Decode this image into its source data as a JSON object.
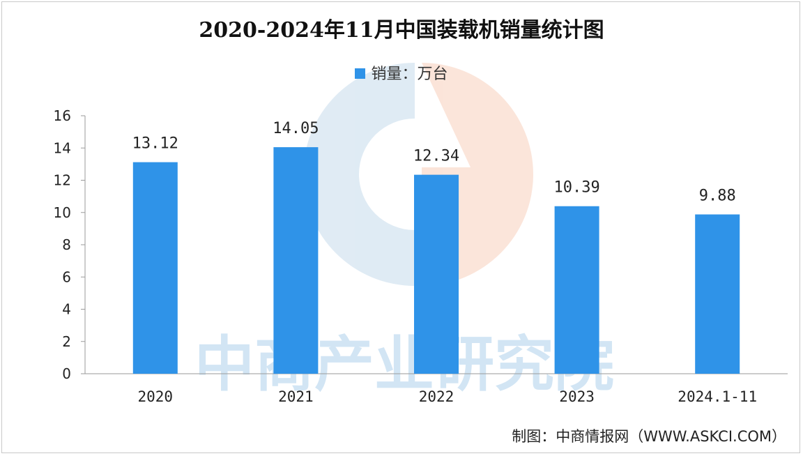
{
  "chart_data": {
    "type": "bar",
    "title": "2020-2024年11月中国装载机销量统计图",
    "categories": [
      "2020",
      "2021",
      "2022",
      "2023",
      "2024.1-11"
    ],
    "series": [
      {
        "name": "销量：万台",
        "values": [
          13.12,
          14.05,
          12.34,
          10.39,
          9.88
        ]
      }
    ],
    "data_labels": [
      "13.12",
      "14.05",
      "12.34",
      "10.39",
      "9.88"
    ],
    "ylim": [
      0,
      16
    ],
    "yticks": [
      "0",
      "2",
      "4",
      "6",
      "8",
      "10",
      "12",
      "14",
      "16"
    ],
    "grid": false,
    "legend_position": "top-center",
    "bar_color": "#2f93e8"
  },
  "watermark_text": "中商产业研究院",
  "credit": "制图：中商情报网（WWW.ASKCI.COM）"
}
